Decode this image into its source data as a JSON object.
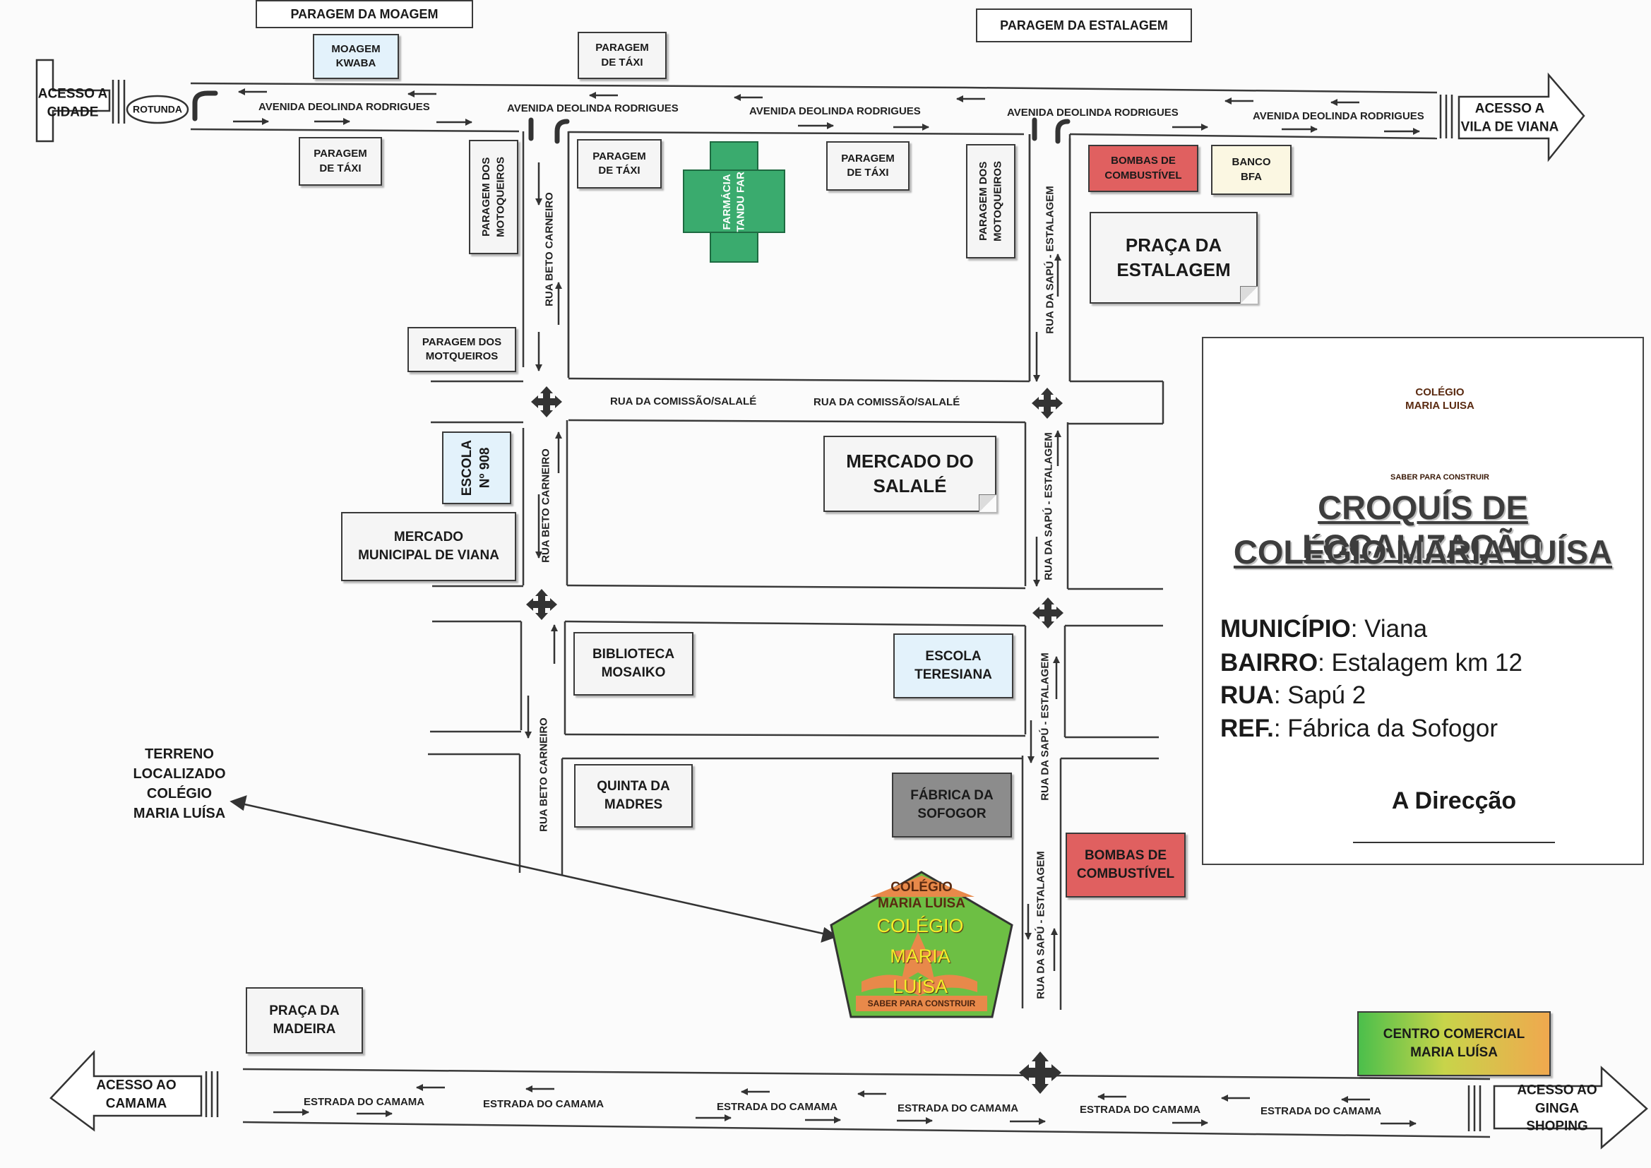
{
  "roads": {
    "avenue_label": "AVENIDA DEOLINDA RODRIGUES",
    "comissao_label": "RUA DA COMISSÃO/SALALÉ",
    "beto_label": "RUA BETO CARNEIRO",
    "sapu_label": "RUA DA SAPÚ - ESTALAGEM",
    "camama_label": "ESTRADA DO CAMAMA"
  },
  "signs": {
    "acesso_cidade": "ACESSO A\nCIDADE",
    "rotunda": "ROTUNDA",
    "acesso_viana": "ACESSO A\nVILA DE VIANA",
    "acesso_camama": "ACESSO AO\nCAMAMA",
    "acesso_ginga": "ACESSO AO\nGINGA SHOPING"
  },
  "places": {
    "paragem_moagem": "PARAGEM DA MOAGEM",
    "paragem_estalagem": "PARAGEM DA ESTALAGEM",
    "moagem_kwaba": "MOAGEM\nKWABA",
    "paragem_taxi": "PARAGEM\nDE TÁXI",
    "paragem_motoqueiros_v": "PARAGEM DOS\nMOTOQUEIROS",
    "paragem_motoqueiros_h": "PARAGEM DOS\nMOTQUEIROS",
    "farmacia": "FARMÁCIA\nTANDU FAR",
    "bombas": "BOMBAS DE\nCOMBUSTÍVEL",
    "banco": "BANCO\nBFA",
    "praca_estalagem": "PRAÇA DA\nESTALAGEM",
    "escola_908": "ESCOLA\nNº 908",
    "mercado_salale": "MERCADO DO\nSALALÉ",
    "mercado_municipal": "MERCADO\nMUNICIPAL DE VIANA",
    "biblioteca": "BIBLIOTECA\nMOSAIKO",
    "escola_teresiana": "ESCOLA\nTERESIANA",
    "quinta_madres": "QUINTA DA\nMADRES",
    "fabrica": "FÁBRICA DA\nSOFOGOR",
    "terreno": "TERRENO\nLOCALIZADO\nCOLÉGIO\nMARIA LUÍSA",
    "praca_madeira": "PRAÇA DA\nMADEIRA",
    "centro_comercial": "CENTRO COMERCIAL\nMARIA LUÍSA"
  },
  "school_marker": {
    "banner": "COLÉGIO\nMARIA LUISA",
    "name": "COLÉGIO\nMARIA\nLUÍSA",
    "motto": "SABER PARA CONSTRUIR"
  },
  "info": {
    "logo_banner": "COLÉGIO\nMARIA LUISA",
    "logo_motto": "SABER PARA CONSTRUIR",
    "title_line1": "CROQUÍS DE LOCALIZAÇÃO",
    "title_line2": "COLÉGIO MARIA LUÍSA",
    "municipio_label": "MUNICÍPIO",
    "municipio_value": ": Viana",
    "bairro_label": "BAIRRO",
    "bairro_value": ": Estalagem km 12",
    "rua_label": "RUA",
    "rua_value": ": Sapú 2",
    "ref_label": "REF.",
    "ref_value": ": Fábrica da Sofogor",
    "direccao": "A Direcção"
  },
  "colors": {
    "line": "#3a3a3a",
    "pharmacy": "#3aab6e",
    "fuel": "#e06060",
    "light_blue": "#e3f2fb",
    "light_yellow": "#fbf7e2",
    "factory": "#8c8c8c",
    "school_green": "#6dbf44",
    "school_orange": "#e8894a",
    "school_text": "#f4ee2a"
  }
}
